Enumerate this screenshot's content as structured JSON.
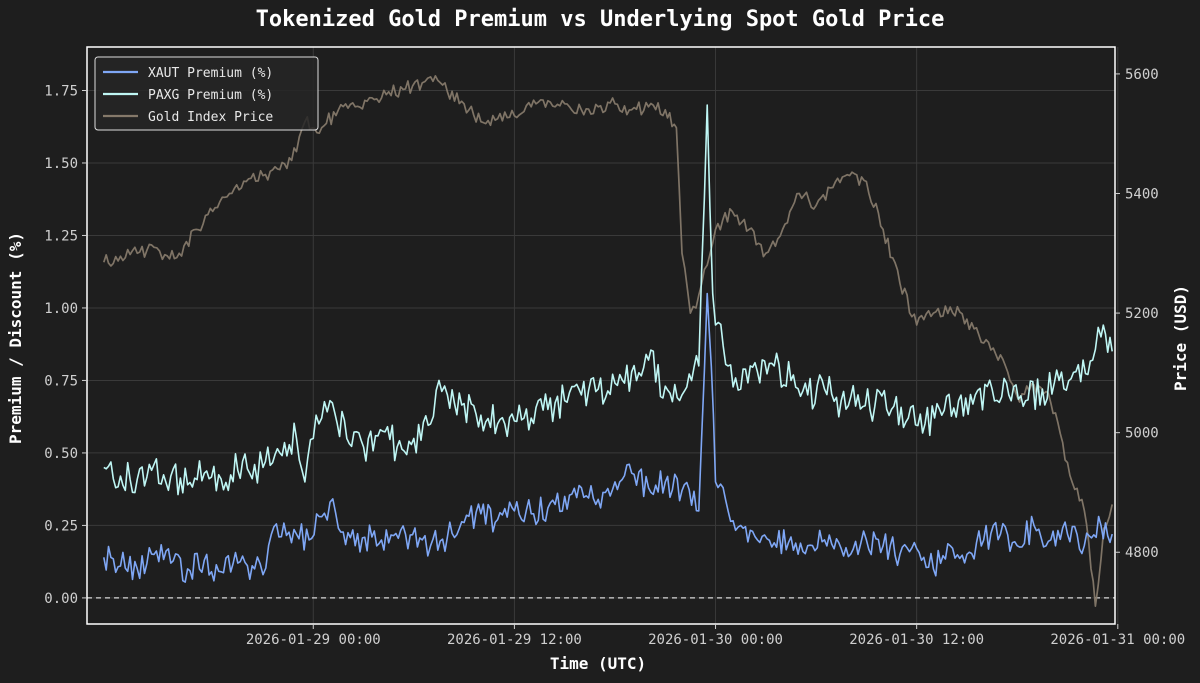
{
  "chart_data": {
    "type": "line",
    "title": "Tokenized Gold Premium vs Underlying Spot Gold Price",
    "xlabel": "Time (UTC)",
    "ylabel_left": "Premium / Discount (%)",
    "ylabel_right": "Price (USD)",
    "x_range": [
      "2026-01-28 10:30",
      "2026-01-30 23:50"
    ],
    "ylim_left": [
      -0.09,
      1.9
    ],
    "ylim_right": [
      4680,
      5645
    ],
    "x_ticks": [
      {
        "value": "2026-01-29 00:00",
        "label": "2026-01-29 00:00"
      },
      {
        "value": "2026-01-29 12:00",
        "label": "2026-01-29 12:00"
      },
      {
        "value": "2026-01-30 00:00",
        "label": "2026-01-30 00:00"
      },
      {
        "value": "2026-01-30 12:00",
        "label": "2026-01-30 12:00"
      },
      {
        "value": "2026-01-31 00:00",
        "label": "2026-01-31 00:00"
      }
    ],
    "y_ticks_left": [
      "0.00",
      "0.25",
      "0.50",
      "0.75",
      "1.00",
      "1.25",
      "1.50",
      "1.75"
    ],
    "y_ticks_right": [
      "4800",
      "5000",
      "5200",
      "5400",
      "5600"
    ],
    "grid": true,
    "legend_position": "top-left",
    "reference_line": {
      "axis": "left",
      "y": 0,
      "style": "dashed"
    },
    "series": [
      {
        "name": "XAUT Premium (%)",
        "axis": "left",
        "color": "#7fa7f5",
        "points": [
          [
            "2026-01-28 11:30",
            0.14
          ],
          [
            "2026-01-28 12:30",
            0.11
          ],
          [
            "2026-01-28 13:30",
            0.1
          ],
          [
            "2026-01-28 14:30",
            0.15
          ],
          [
            "2026-01-28 15:30",
            0.12
          ],
          [
            "2026-01-28 16:30",
            0.1
          ],
          [
            "2026-01-28 17:30",
            0.13
          ],
          [
            "2026-01-28 18:30",
            0.09
          ],
          [
            "2026-01-28 19:30",
            0.12
          ],
          [
            "2026-01-28 20:30",
            0.1
          ],
          [
            "2026-01-28 21:00",
            0.08
          ],
          [
            "2026-01-28 21:30",
            0.22
          ],
          [
            "2026-01-28 23:00",
            0.22
          ],
          [
            "2026-01-28 23:45",
            0.2
          ],
          [
            "2026-01-29 00:30",
            0.28
          ],
          [
            "2026-01-29 01:00",
            0.33
          ],
          [
            "2026-01-29 01:30",
            0.24
          ],
          [
            "2026-01-29 02:30",
            0.18
          ],
          [
            "2026-01-29 03:30",
            0.21
          ],
          [
            "2026-01-29 04:30",
            0.19
          ],
          [
            "2026-01-29 05:30",
            0.22
          ],
          [
            "2026-01-29 06:30",
            0.2
          ],
          [
            "2026-01-29 07:00",
            0.18
          ],
          [
            "2026-01-29 08:00",
            0.21
          ],
          [
            "2026-01-29 09:00",
            0.26
          ],
          [
            "2026-01-29 10:00",
            0.29
          ],
          [
            "2026-01-29 11:00",
            0.27
          ],
          [
            "2026-01-29 12:00",
            0.3
          ],
          [
            "2026-01-29 13:00",
            0.29
          ],
          [
            "2026-01-29 14:00",
            0.31
          ],
          [
            "2026-01-29 15:00",
            0.35
          ],
          [
            "2026-01-29 16:00",
            0.38
          ],
          [
            "2026-01-29 17:00",
            0.34
          ],
          [
            "2026-01-29 18:00",
            0.4
          ],
          [
            "2026-01-29 19:00",
            0.43
          ],
          [
            "2026-01-29 20:00",
            0.38
          ],
          [
            "2026-01-29 21:00",
            0.4
          ],
          [
            "2026-01-29 22:00",
            0.37
          ],
          [
            "2026-01-29 23:00",
            0.3
          ],
          [
            "2026-01-29 23:30",
            1.05
          ],
          [
            "2026-01-29 23:45",
            0.8
          ],
          [
            "2026-01-30 00:00",
            0.4
          ],
          [
            "2026-01-30 00:45",
            0.3
          ],
          [
            "2026-01-30 01:30",
            0.25
          ],
          [
            "2026-01-30 02:30",
            0.2
          ],
          [
            "2026-01-30 03:30",
            0.19
          ],
          [
            "2026-01-30 04:30",
            0.21
          ],
          [
            "2026-01-30 05:30",
            0.18
          ],
          [
            "2026-01-30 06:30",
            0.2
          ],
          [
            "2026-01-30 07:30",
            0.17
          ],
          [
            "2026-01-30 08:30",
            0.15
          ],
          [
            "2026-01-30 09:00",
            0.2
          ],
          [
            "2026-01-30 10:00",
            0.18
          ],
          [
            "2026-01-30 11:00",
            0.15
          ],
          [
            "2026-01-30 12:00",
            0.17
          ],
          [
            "2026-01-30 13:00",
            0.1
          ],
          [
            "2026-01-30 14:00",
            0.18
          ],
          [
            "2026-01-30 15:00",
            0.15
          ],
          [
            "2026-01-30 16:00",
            0.2
          ],
          [
            "2026-01-30 17:00",
            0.22
          ],
          [
            "2026-01-30 18:00",
            0.18
          ],
          [
            "2026-01-30 19:00",
            0.25
          ],
          [
            "2026-01-30 20:00",
            0.2
          ],
          [
            "2026-01-30 21:00",
            0.22
          ],
          [
            "2026-01-30 22:00",
            0.18
          ],
          [
            "2026-01-30 23:00",
            0.25
          ],
          [
            "2026-01-30 23:40",
            0.22
          ]
        ]
      },
      {
        "name": "PAXG Premium (%)",
        "axis": "left",
        "color": "#bff6f4",
        "points": [
          [
            "2026-01-28 11:30",
            0.45
          ],
          [
            "2026-01-28 12:30",
            0.42
          ],
          [
            "2026-01-28 13:30",
            0.41
          ],
          [
            "2026-01-28 14:30",
            0.46
          ],
          [
            "2026-01-28 15:30",
            0.42
          ],
          [
            "2026-01-28 16:30",
            0.39
          ],
          [
            "2026-01-28 17:30",
            0.43
          ],
          [
            "2026-01-28 18:30",
            0.41
          ],
          [
            "2026-01-28 19:30",
            0.44
          ],
          [
            "2026-01-28 20:30",
            0.46
          ],
          [
            "2026-01-28 21:00",
            0.45
          ],
          [
            "2026-01-28 22:00",
            0.5
          ],
          [
            "2026-01-28 23:00",
            0.55
          ],
          [
            "2026-01-28 23:30",
            0.4
          ],
          [
            "2026-01-29 00:00",
            0.55
          ],
          [
            "2026-01-29 00:30",
            0.62
          ],
          [
            "2026-01-29 01:00",
            0.68
          ],
          [
            "2026-01-29 02:00",
            0.55
          ],
          [
            "2026-01-29 03:00",
            0.52
          ],
          [
            "2026-01-29 04:00",
            0.58
          ],
          [
            "2026-01-29 05:00",
            0.52
          ],
          [
            "2026-01-29 06:00",
            0.55
          ],
          [
            "2026-01-29 07:00",
            0.6
          ],
          [
            "2026-01-29 07:30",
            0.75
          ],
          [
            "2026-01-29 08:00",
            0.7
          ],
          [
            "2026-01-29 09:00",
            0.67
          ],
          [
            "2026-01-29 10:00",
            0.63
          ],
          [
            "2026-01-29 11:00",
            0.6
          ],
          [
            "2026-01-29 12:00",
            0.61
          ],
          [
            "2026-01-29 13:00",
            0.62
          ],
          [
            "2026-01-29 14:00",
            0.65
          ],
          [
            "2026-01-29 15:00",
            0.68
          ],
          [
            "2026-01-29 16:00",
            0.7
          ],
          [
            "2026-01-29 17:00",
            0.72
          ],
          [
            "2026-01-29 18:00",
            0.74
          ],
          [
            "2026-01-29 19:00",
            0.78
          ],
          [
            "2026-01-29 20:00",
            0.82
          ],
          [
            "2026-01-29 21:00",
            0.73
          ],
          [
            "2026-01-29 22:00",
            0.7
          ],
          [
            "2026-01-29 23:00",
            0.8
          ],
          [
            "2026-01-29 23:30",
            1.7
          ],
          [
            "2026-01-29 23:50",
            1.05
          ],
          [
            "2026-01-30 00:10",
            0.95
          ],
          [
            "2026-01-30 00:45",
            0.8
          ],
          [
            "2026-01-30 01:30",
            0.72
          ],
          [
            "2026-01-30 02:30",
            0.78
          ],
          [
            "2026-01-30 03:30",
            0.8
          ],
          [
            "2026-01-30 04:30",
            0.75
          ],
          [
            "2026-01-30 05:30",
            0.7
          ],
          [
            "2026-01-30 06:30",
            0.72
          ],
          [
            "2026-01-30 07:30",
            0.68
          ],
          [
            "2026-01-30 08:30",
            0.7
          ],
          [
            "2026-01-30 09:30",
            0.66
          ],
          [
            "2026-01-30 10:30",
            0.65
          ],
          [
            "2026-01-30 11:30",
            0.62
          ],
          [
            "2026-01-30 12:30",
            0.6
          ],
          [
            "2026-01-30 13:30",
            0.63
          ],
          [
            "2026-01-30 14:30",
            0.68
          ],
          [
            "2026-01-30 15:30",
            0.7
          ],
          [
            "2026-01-30 16:30",
            0.72
          ],
          [
            "2026-01-30 17:30",
            0.7
          ],
          [
            "2026-01-30 18:30",
            0.68
          ],
          [
            "2026-01-30 19:30",
            0.72
          ],
          [
            "2026-01-30 20:30",
            0.75
          ],
          [
            "2026-01-30 21:30",
            0.78
          ],
          [
            "2026-01-30 22:30",
            0.82
          ],
          [
            "2026-01-30 23:00",
            0.9
          ],
          [
            "2026-01-30 23:40",
            0.85
          ]
        ]
      },
      {
        "name": "Gold Index Price",
        "axis": "right",
        "color": "#85796a",
        "points": [
          [
            "2026-01-28 11:30",
            5285
          ],
          [
            "2026-01-28 12:30",
            5295
          ],
          [
            "2026-01-28 13:30",
            5300
          ],
          [
            "2026-01-28 14:30",
            5310
          ],
          [
            "2026-01-28 15:00",
            5290
          ],
          [
            "2026-01-28 16:00",
            5300
          ],
          [
            "2026-01-28 17:00",
            5340
          ],
          [
            "2026-01-28 18:00",
            5370
          ],
          [
            "2026-01-28 19:00",
            5400
          ],
          [
            "2026-01-28 20:00",
            5420
          ],
          [
            "2026-01-28 21:00",
            5430
          ],
          [
            "2026-01-28 22:00",
            5440
          ],
          [
            "2026-01-28 23:00",
            5470
          ],
          [
            "2026-01-28 23:30",
            5520
          ],
          [
            "2026-01-29 00:30",
            5510
          ],
          [
            "2026-01-29 01:30",
            5540
          ],
          [
            "2026-01-29 02:30",
            5545
          ],
          [
            "2026-01-29 03:30",
            5560
          ],
          [
            "2026-01-29 04:30",
            5570
          ],
          [
            "2026-01-29 05:30",
            5575
          ],
          [
            "2026-01-29 06:30",
            5585
          ],
          [
            "2026-01-29 07:00",
            5595
          ],
          [
            "2026-01-29 08:00",
            5570
          ],
          [
            "2026-01-29 09:00",
            5550
          ],
          [
            "2026-01-29 10:00",
            5520
          ],
          [
            "2026-01-29 11:00",
            5525
          ],
          [
            "2026-01-29 12:00",
            5530
          ],
          [
            "2026-01-29 13:00",
            5545
          ],
          [
            "2026-01-29 14:00",
            5555
          ],
          [
            "2026-01-29 15:00",
            5550
          ],
          [
            "2026-01-29 16:00",
            5540
          ],
          [
            "2026-01-29 17:00",
            5545
          ],
          [
            "2026-01-29 18:00",
            5550
          ],
          [
            "2026-01-29 19:00",
            5540
          ],
          [
            "2026-01-29 20:00",
            5545
          ],
          [
            "2026-01-29 21:00",
            5540
          ],
          [
            "2026-01-29 21:40",
            5510
          ],
          [
            "2026-01-29 22:00",
            5300
          ],
          [
            "2026-01-29 22:30",
            5200
          ],
          [
            "2026-01-29 23:00",
            5230
          ],
          [
            "2026-01-29 23:30",
            5280
          ],
          [
            "2026-01-30 00:00",
            5340
          ],
          [
            "2026-01-30 01:00",
            5370
          ],
          [
            "2026-01-30 02:00",
            5340
          ],
          [
            "2026-01-30 03:00",
            5300
          ],
          [
            "2026-01-30 04:00",
            5340
          ],
          [
            "2026-01-30 05:00",
            5400
          ],
          [
            "2026-01-30 06:00",
            5380
          ],
          [
            "2026-01-30 07:00",
            5410
          ],
          [
            "2026-01-30 08:00",
            5430
          ],
          [
            "2026-01-30 09:00",
            5420
          ],
          [
            "2026-01-30 10:00",
            5340
          ],
          [
            "2026-01-30 11:00",
            5250
          ],
          [
            "2026-01-30 12:00",
            5180
          ],
          [
            "2026-01-30 13:00",
            5200
          ],
          [
            "2026-01-30 14:00",
            5210
          ],
          [
            "2026-01-30 15:00",
            5190
          ],
          [
            "2026-01-30 16:00",
            5150
          ],
          [
            "2026-01-30 17:00",
            5130
          ],
          [
            "2026-01-30 18:00",
            5060
          ],
          [
            "2026-01-30 19:00",
            5080
          ],
          [
            "2026-01-30 20:00",
            5050
          ],
          [
            "2026-01-30 21:00",
            4950
          ],
          [
            "2026-01-30 22:00",
            4870
          ],
          [
            "2026-01-30 22:40",
            4710
          ],
          [
            "2026-01-30 23:10",
            4840
          ],
          [
            "2026-01-30 23:40",
            4880
          ]
        ]
      }
    ]
  }
}
